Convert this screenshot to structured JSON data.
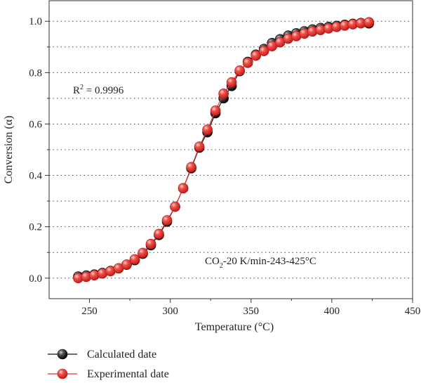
{
  "chart_data": {
    "type": "scatter",
    "title": "",
    "xlabel": "Temperature (°C)",
    "ylabel": "Conversion (α)",
    "xlim": [
      225,
      450
    ],
    "ylim": [
      -0.08,
      1.08
    ],
    "x_ticks": [
      "250",
      "300",
      "350",
      "400",
      "450"
    ],
    "y_ticks": [
      "0.0",
      "0.2",
      "0.4",
      "0.6",
      "0.8",
      "1.0"
    ],
    "grid": "horizontal dotted",
    "legend_position": "below",
    "annotations": {
      "r2_prefix": "R",
      "r2_sup": "2",
      "r2_value": " = 0.9996",
      "cond_prefix": "CO",
      "cond_sub": "2",
      "cond_rest": "-20 K/min-243-425°C"
    },
    "series": [
      {
        "name": "Calculated date",
        "color": "#111111",
        "style": "line+markers",
        "x": [
          243,
          248,
          253,
          258,
          263,
          268,
          273,
          278,
          283,
          288,
          293,
          298,
          303,
          308,
          313,
          318,
          323,
          328,
          333,
          338,
          343,
          348,
          353,
          358,
          363,
          368,
          373,
          378,
          383,
          388,
          393,
          398,
          403,
          408,
          413,
          418,
          423
        ],
        "y": [
          0.006,
          0.01,
          0.014,
          0.02,
          0.028,
          0.038,
          0.052,
          0.07,
          0.095,
          0.128,
          0.168,
          0.22,
          0.278,
          0.35,
          0.428,
          0.508,
          0.568,
          0.642,
          0.7,
          0.748,
          0.806,
          0.842,
          0.87,
          0.892,
          0.915,
          0.93,
          0.944,
          0.953,
          0.961,
          0.968,
          0.974,
          0.978,
          0.982,
          0.986,
          0.99,
          0.993,
          0.992
        ]
      },
      {
        "name": "Experimental date",
        "color": "#e8322e",
        "style": "line+markers",
        "x": [
          243,
          248,
          253,
          258,
          263,
          268,
          273,
          278,
          283,
          288,
          293,
          298,
          303,
          308,
          313,
          318,
          323,
          328,
          333,
          338,
          343,
          348,
          353,
          358,
          363,
          368,
          373,
          378,
          383,
          388,
          393,
          398,
          403,
          408,
          413,
          418,
          423
        ],
        "y": [
          0.0,
          0.005,
          0.011,
          0.018,
          0.027,
          0.038,
          0.053,
          0.073,
          0.098,
          0.133,
          0.172,
          0.225,
          0.278,
          0.35,
          0.432,
          0.512,
          0.578,
          0.652,
          0.718,
          0.762,
          0.808,
          0.838,
          0.866,
          0.884,
          0.903,
          0.918,
          0.932,
          0.942,
          0.952,
          0.96,
          0.966,
          0.972,
          0.978,
          0.983,
          0.988,
          0.992,
          0.996
        ]
      }
    ]
  }
}
